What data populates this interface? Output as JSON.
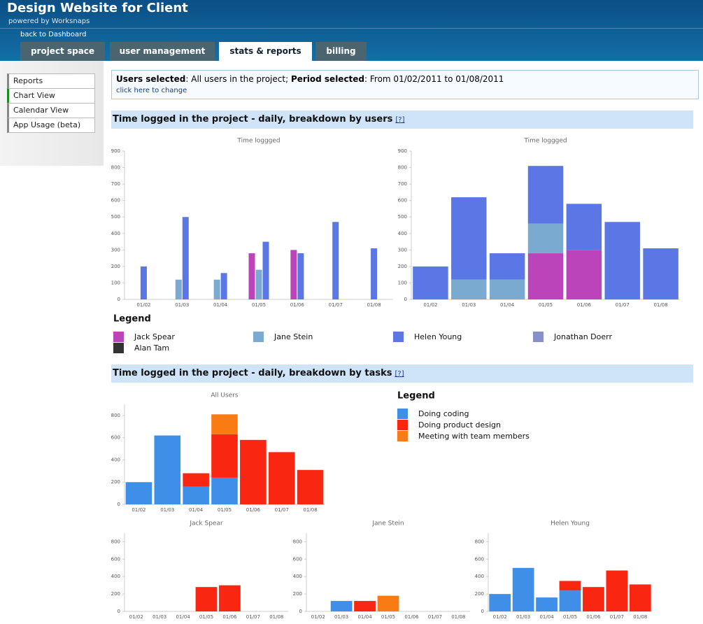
{
  "header": {
    "title": "Design Website for Client",
    "subtitle": "powered by Worksnaps",
    "back_link": "back to Dashboard",
    "tabs": [
      "project space",
      "user management",
      "stats & reports",
      "billing"
    ]
  },
  "sidebar": {
    "items": [
      "Reports",
      "Chart View",
      "Calendar View",
      "App Usage (beta)"
    ]
  },
  "selection": {
    "users_label": "Users selected",
    "users_text": ": All users in the project; ",
    "period_label": "Period selected",
    "period_text": ": From 01/02/2011 to 01/08/2011",
    "change_link": "click here to change"
  },
  "sections": [
    {
      "title": "Time logged in the project - daily, breakdown by users",
      "help": "[?]"
    },
    {
      "title": "Time logged in the project - daily, breakdown by tasks",
      "help": "[?]"
    }
  ],
  "chart_data": [
    {
      "type": "bar",
      "title": "Time loggged",
      "categories": [
        "01/02",
        "01/03",
        "01/04",
        "01/05",
        "01/06",
        "01/07",
        "01/08"
      ],
      "ylim": [
        0,
        900
      ],
      "yticks": [
        0,
        100,
        200,
        300,
        400,
        500,
        600,
        700,
        800,
        900
      ],
      "grid": false,
      "legend_title": "Legend",
      "series": [
        {
          "name": "Jack Spear",
          "color": "#bb44bb",
          "values": [
            null,
            null,
            null,
            280,
            300,
            null,
            null
          ]
        },
        {
          "name": "Jane Stein",
          "color": "#7aaacf",
          "values": [
            null,
            120,
            120,
            180,
            null,
            null,
            null
          ]
        },
        {
          "name": "Helen Young",
          "color": "#5b77e5",
          "values": [
            200,
            500,
            160,
            350,
            280,
            470,
            310
          ]
        },
        {
          "name": "Jonathan Doerr",
          "color": "#8790c8",
          "values": [
            null,
            null,
            null,
            null,
            null,
            null,
            null
          ]
        },
        {
          "name": "Alan Tam",
          "color": "#333333",
          "values": [
            null,
            null,
            null,
            null,
            null,
            null,
            null
          ]
        }
      ]
    },
    {
      "type": "stacked_bar",
      "title": "Time loggged",
      "categories": [
        "01/02",
        "01/03",
        "01/04",
        "01/05",
        "01/06",
        "01/07",
        "01/08"
      ],
      "ylim": [
        0,
        900
      ],
      "yticks": [
        0,
        100,
        200,
        300,
        400,
        500,
        600,
        700,
        800,
        900
      ],
      "grid": false,
      "series": [
        {
          "color": "#bb44bb",
          "values": [
            null,
            null,
            null,
            280,
            300,
            null,
            null
          ]
        },
        {
          "color": "#7aaacf",
          "values": [
            null,
            120,
            120,
            180,
            null,
            null,
            null
          ]
        },
        {
          "color": "#5b77e5",
          "values": [
            200,
            500,
            160,
            350,
            280,
            470,
            310
          ]
        }
      ]
    },
    {
      "type": "stacked_bar",
      "title": "All Users",
      "categories": [
        "01/02",
        "01/03",
        "01/04",
        "01/05",
        "01/06",
        "01/07",
        "01/08"
      ],
      "ylim": [
        0,
        900
      ],
      "yticks": [
        0,
        200,
        400,
        600,
        800
      ],
      "grid": false,
      "legend_title": "Legend",
      "series": [
        {
          "name": "Doing coding",
          "color": "#3f8fe9",
          "values": [
            200,
            620,
            160,
            240,
            null,
            null,
            null
          ]
        },
        {
          "name": "Doing product design",
          "color": "#f92611",
          "values": [
            null,
            null,
            120,
            390,
            580,
            470,
            310
          ]
        },
        {
          "name": "Meeting with team members",
          "color": "#f97b14",
          "values": [
            null,
            null,
            null,
            180,
            null,
            null,
            null
          ]
        }
      ]
    },
    {
      "type": "stacked_bar",
      "title": "Jack Spear",
      "categories": [
        "01/02",
        "01/03",
        "01/04",
        "01/05",
        "01/06",
        "01/07",
        "01/08"
      ],
      "ylim": [
        0,
        900
      ],
      "yticks": [
        0,
        200,
        400,
        600,
        800
      ],
      "grid": false,
      "series": [
        {
          "color": "#3f8fe9",
          "values": [
            null,
            null,
            null,
            null,
            null,
            null,
            null
          ]
        },
        {
          "color": "#f92611",
          "values": [
            null,
            null,
            null,
            280,
            300,
            null,
            null
          ]
        },
        {
          "color": "#f97b14",
          "values": [
            null,
            null,
            null,
            null,
            null,
            null,
            null
          ]
        }
      ]
    },
    {
      "type": "stacked_bar",
      "title": "Jane Stein",
      "categories": [
        "01/02",
        "01/03",
        "01/04",
        "01/05",
        "01/06",
        "01/07",
        "01/08"
      ],
      "ylim": [
        0,
        900
      ],
      "yticks": [
        0,
        200,
        400,
        600,
        800
      ],
      "grid": false,
      "series": [
        {
          "color": "#3f8fe9",
          "values": [
            null,
            120,
            null,
            null,
            null,
            null,
            null
          ]
        },
        {
          "color": "#f92611",
          "values": [
            null,
            null,
            120,
            null,
            null,
            null,
            null
          ]
        },
        {
          "color": "#f97b14",
          "values": [
            null,
            null,
            null,
            180,
            null,
            null,
            null
          ]
        }
      ]
    },
    {
      "type": "stacked_bar",
      "title": "Helen Young",
      "categories": [
        "01/02",
        "01/03",
        "01/04",
        "01/05",
        "01/06",
        "01/07",
        "01/08"
      ],
      "ylim": [
        0,
        900
      ],
      "yticks": [
        0,
        200,
        400,
        600,
        800
      ],
      "grid": false,
      "series": [
        {
          "color": "#3f8fe9",
          "values": [
            200,
            500,
            160,
            240,
            null,
            null,
            null
          ]
        },
        {
          "color": "#f92611",
          "values": [
            null,
            null,
            null,
            110,
            280,
            470,
            310
          ]
        },
        {
          "color": "#f97b14",
          "values": [
            null,
            null,
            null,
            null,
            null,
            null,
            null
          ]
        }
      ]
    }
  ]
}
